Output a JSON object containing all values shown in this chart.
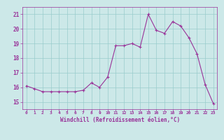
{
  "x": [
    0,
    1,
    2,
    3,
    4,
    5,
    6,
    7,
    8,
    9,
    10,
    11,
    12,
    13,
    14,
    15,
    16,
    17,
    18,
    19,
    20,
    21,
    22,
    23
  ],
  "y": [
    16.1,
    15.9,
    15.7,
    15.7,
    15.7,
    15.7,
    15.7,
    15.8,
    16.3,
    16.0,
    16.7,
    18.85,
    18.85,
    19.0,
    18.75,
    21.0,
    19.9,
    19.7,
    20.5,
    20.2,
    19.4,
    18.3,
    16.2,
    14.9
  ],
  "line_color": "#993399",
  "marker": "+",
  "marker_color": "#993399",
  "bg_color": "#cce8e8",
  "grid_color": "#99cccc",
  "xlabel": "Windchill (Refroidissement éolien,°C)",
  "xlabel_color": "#993399",
  "tick_color": "#993399",
  "ylim": [
    14.5,
    21.5
  ],
  "yticks": [
    15,
    16,
    17,
    18,
    19,
    20,
    21
  ],
  "xticks": [
    0,
    1,
    2,
    3,
    4,
    5,
    6,
    7,
    8,
    9,
    10,
    11,
    12,
    13,
    14,
    15,
    16,
    17,
    18,
    19,
    20,
    21,
    22,
    23
  ],
  "xlim": [
    -0.5,
    23.5
  ]
}
